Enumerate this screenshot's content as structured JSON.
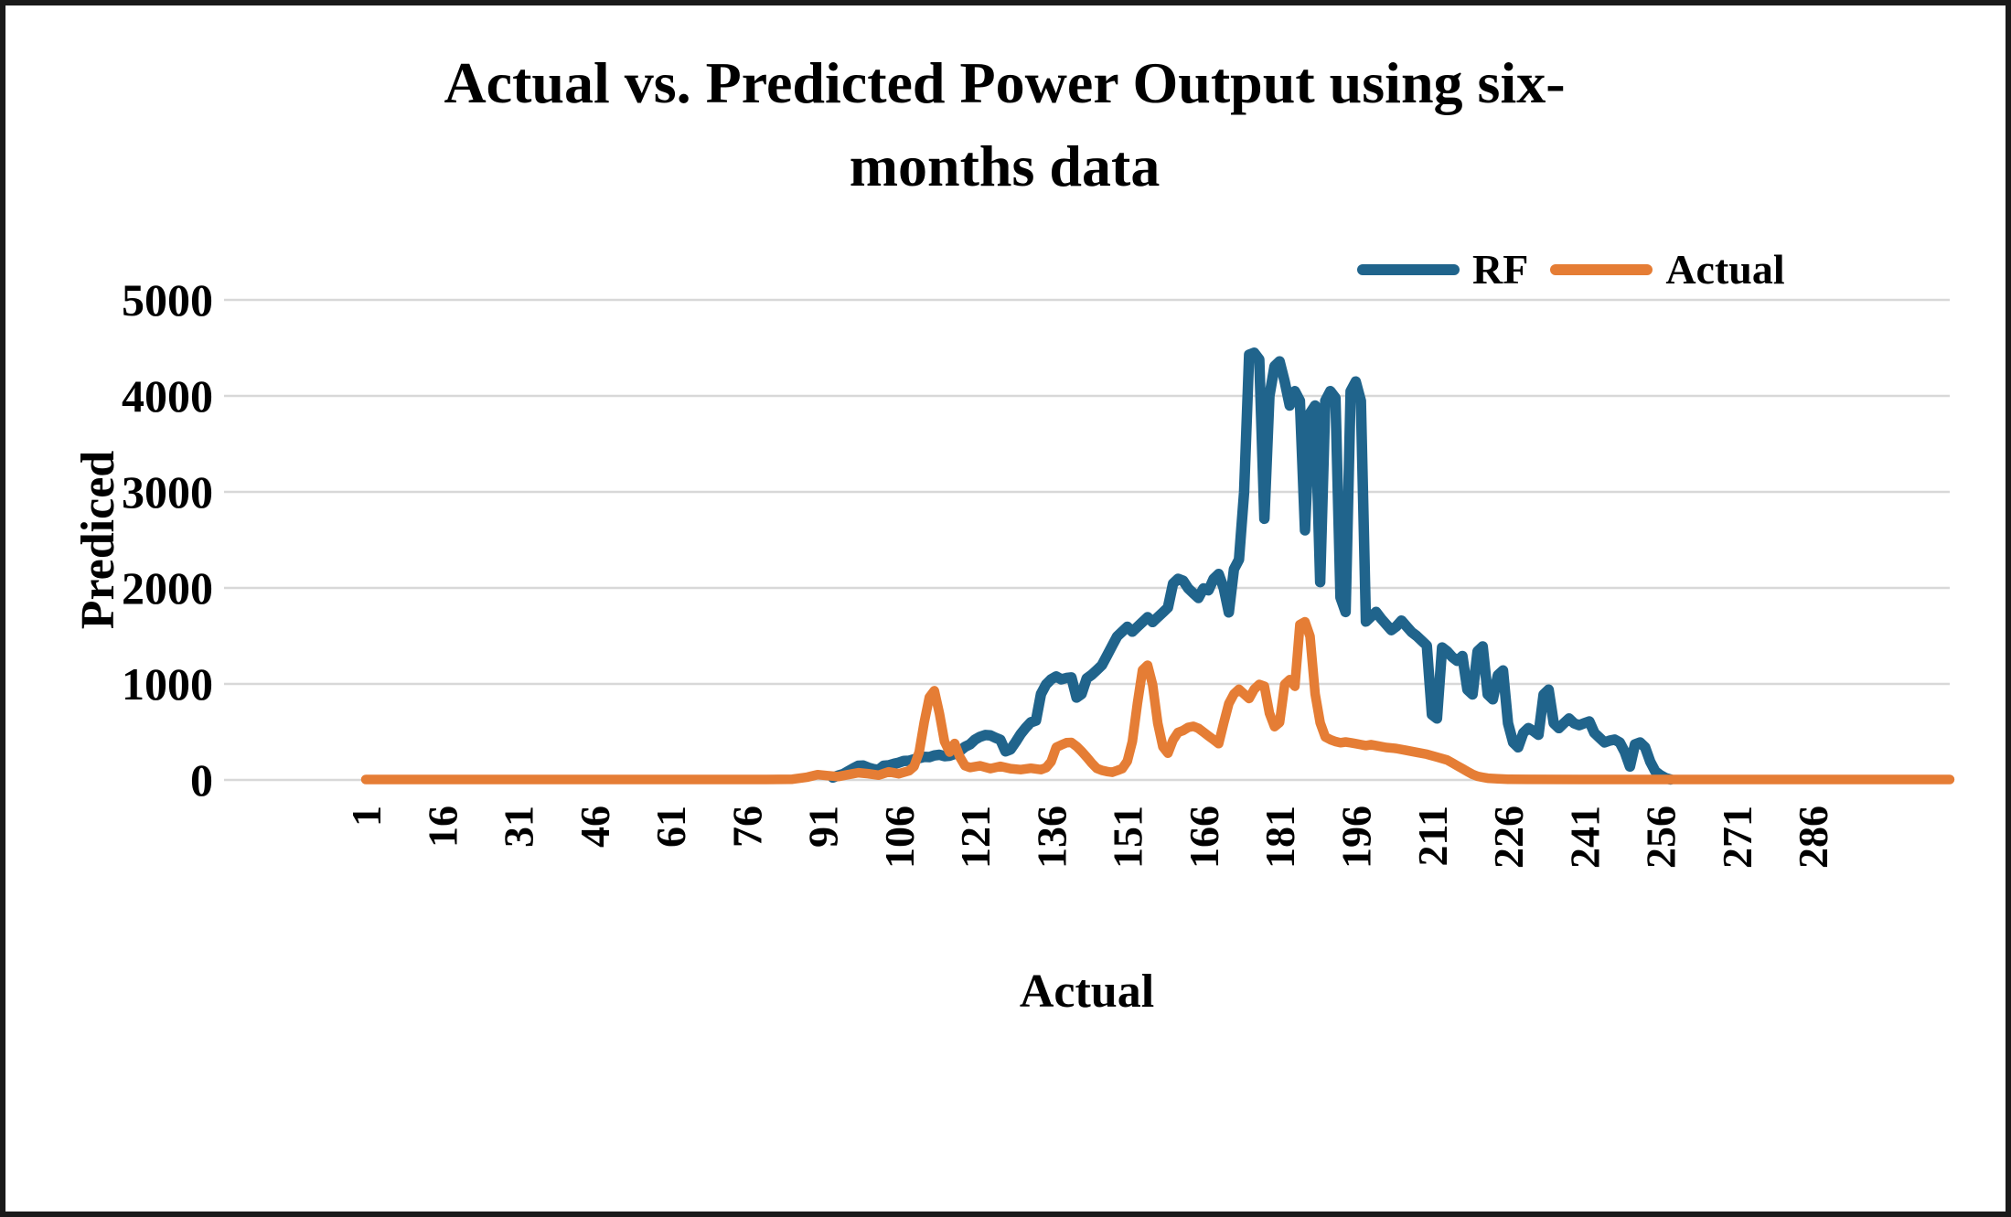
{
  "chart_data": {
    "type": "line",
    "title": "Actual vs. Predicted Power Output using six-months data",
    "title_lines": [
      "Actual vs. Predicted Power Output using six-",
      "months data"
    ],
    "xlabel": "Actual",
    "ylabel": "Prediced",
    "xlim": [
      1,
      313
    ],
    "ylim": [
      0,
      5000
    ],
    "y_ticks": [
      0,
      1000,
      2000,
      3000,
      4000,
      5000
    ],
    "x_tick_labels": [
      "1",
      "16",
      "31",
      "46",
      "61",
      "76",
      "91",
      "106",
      "121",
      "136",
      "151",
      "166",
      "181",
      "196",
      "211",
      "226",
      "241",
      "256",
      "271",
      "286"
    ],
    "grid": true,
    "legend_position": "top-right",
    "gridline_color": "#d8d8d8",
    "background_color": "#ffffff",
    "border_color": "#1a1a1a",
    "text_color": "#000000",
    "series": [
      {
        "name": "RF",
        "color": "#20648c",
        "stroke_width": 11.5,
        "data": [
          [
            93,
            25
          ],
          [
            94,
            45
          ],
          [
            95,
            60
          ],
          [
            96,
            90
          ],
          [
            97,
            120
          ],
          [
            98,
            148
          ],
          [
            99,
            150
          ],
          [
            100,
            128
          ],
          [
            101,
            112
          ],
          [
            102,
            105
          ],
          [
            103,
            148
          ],
          [
            104,
            152
          ],
          [
            105,
            168
          ],
          [
            106,
            180
          ],
          [
            107,
            198
          ],
          [
            108,
            200
          ],
          [
            109,
            215
          ],
          [
            110,
            228
          ],
          [
            111,
            240
          ],
          [
            112,
            238
          ],
          [
            113,
            255
          ],
          [
            114,
            262
          ],
          [
            115,
            248
          ],
          [
            116,
            252
          ],
          [
            117,
            270
          ],
          [
            118,
            300
          ],
          [
            119,
            345
          ],
          [
            120,
            370
          ],
          [
            121,
            420
          ],
          [
            122,
            450
          ],
          [
            123,
            468
          ],
          [
            124,
            465
          ],
          [
            125,
            440
          ],
          [
            126,
            418
          ],
          [
            127,
            298
          ],
          [
            128,
            318
          ],
          [
            129,
            395
          ],
          [
            130,
            478
          ],
          [
            131,
            545
          ],
          [
            132,
            600
          ],
          [
            133,
            618
          ],
          [
            134,
            895
          ],
          [
            135,
            995
          ],
          [
            136,
            1048
          ],
          [
            137,
            1078
          ],
          [
            138,
            1048
          ],
          [
            139,
            1062
          ],
          [
            140,
            1068
          ],
          [
            141,
            858
          ],
          [
            142,
            895
          ],
          [
            143,
            1058
          ],
          [
            144,
            1095
          ],
          [
            145,
            1145
          ],
          [
            146,
            1195
          ],
          [
            147,
            1295
          ],
          [
            148,
            1395
          ],
          [
            149,
            1495
          ],
          [
            150,
            1545
          ],
          [
            151,
            1595
          ],
          [
            152,
            1545
          ],
          [
            153,
            1595
          ],
          [
            154,
            1645
          ],
          [
            155,
            1695
          ],
          [
            156,
            1645
          ],
          [
            157,
            1695
          ],
          [
            158,
            1745
          ],
          [
            159,
            1795
          ],
          [
            160,
            2045
          ],
          [
            161,
            2095
          ],
          [
            162,
            2075
          ],
          [
            163,
            1995
          ],
          [
            164,
            1945
          ],
          [
            165,
            1895
          ],
          [
            166,
            1995
          ],
          [
            167,
            1975
          ],
          [
            168,
            2095
          ],
          [
            169,
            2145
          ],
          [
            170,
            1995
          ],
          [
            171,
            1745
          ],
          [
            172,
            2195
          ],
          [
            173,
            2295
          ],
          [
            174,
            2995
          ],
          [
            175,
            4430
          ],
          [
            176,
            4450
          ],
          [
            177,
            4380
          ],
          [
            178,
            2720
          ],
          [
            179,
            4000
          ],
          [
            180,
            4310
          ],
          [
            181,
            4360
          ],
          [
            182,
            4150
          ],
          [
            183,
            3900
          ],
          [
            184,
            4050
          ],
          [
            185,
            3950
          ],
          [
            186,
            2600
          ],
          [
            187,
            3820
          ],
          [
            188,
            3900
          ],
          [
            189,
            2060
          ],
          [
            190,
            3950
          ],
          [
            191,
            4050
          ],
          [
            192,
            3980
          ],
          [
            193,
            1900
          ],
          [
            194,
            1750
          ],
          [
            195,
            4050
          ],
          [
            196,
            4150
          ],
          [
            197,
            3950
          ],
          [
            198,
            1650
          ],
          [
            199,
            1700
          ],
          [
            200,
            1750
          ],
          [
            201,
            1680
          ],
          [
            202,
            1620
          ],
          [
            203,
            1560
          ],
          [
            204,
            1600
          ],
          [
            205,
            1660
          ],
          [
            206,
            1600
          ],
          [
            207,
            1540
          ],
          [
            208,
            1500
          ],
          [
            209,
            1450
          ],
          [
            210,
            1400
          ],
          [
            211,
            680
          ],
          [
            212,
            640
          ],
          [
            213,
            1380
          ],
          [
            214,
            1340
          ],
          [
            215,
            1280
          ],
          [
            216,
            1240
          ],
          [
            217,
            1290
          ],
          [
            218,
            940
          ],
          [
            219,
            890
          ],
          [
            220,
            1340
          ],
          [
            221,
            1390
          ],
          [
            222,
            890
          ],
          [
            223,
            840
          ],
          [
            224,
            1090
          ],
          [
            225,
            1140
          ],
          [
            226,
            590
          ],
          [
            227,
            390
          ],
          [
            228,
            340
          ],
          [
            229,
            490
          ],
          [
            230,
            540
          ],
          [
            231,
            510
          ],
          [
            232,
            470
          ],
          [
            233,
            890
          ],
          [
            234,
            940
          ],
          [
            235,
            590
          ],
          [
            236,
            540
          ],
          [
            237,
            590
          ],
          [
            238,
            640
          ],
          [
            239,
            590
          ],
          [
            240,
            570
          ],
          [
            241,
            590
          ],
          [
            242,
            610
          ],
          [
            243,
            490
          ],
          [
            244,
            440
          ],
          [
            245,
            390
          ],
          [
            246,
            410
          ],
          [
            247,
            420
          ],
          [
            248,
            390
          ],
          [
            249,
            290
          ],
          [
            250,
            140
          ],
          [
            251,
            370
          ],
          [
            252,
            390
          ],
          [
            253,
            340
          ],
          [
            254,
            190
          ],
          [
            255,
            90
          ],
          [
            256,
            50
          ],
          [
            257,
            20
          ],
          [
            258,
            5
          ]
        ]
      },
      {
        "name": "Actual",
        "color": "#e57d35",
        "stroke_width": 10.5,
        "data": [
          [
            1,
            5
          ],
          [
            10,
            5
          ],
          [
            20,
            5
          ],
          [
            30,
            5
          ],
          [
            40,
            5
          ],
          [
            50,
            5
          ],
          [
            60,
            5
          ],
          [
            70,
            5
          ],
          [
            80,
            5
          ],
          [
            85,
            8
          ],
          [
            88,
            30
          ],
          [
            90,
            55
          ],
          [
            92,
            45
          ],
          [
            94,
            35
          ],
          [
            96,
            55
          ],
          [
            98,
            75
          ],
          [
            100,
            65
          ],
          [
            102,
            50
          ],
          [
            104,
            85
          ],
          [
            106,
            65
          ],
          [
            108,
            95
          ],
          [
            109,
            140
          ],
          [
            110,
            290
          ],
          [
            111,
            600
          ],
          [
            112,
            860
          ],
          [
            113,
            930
          ],
          [
            114,
            690
          ],
          [
            115,
            400
          ],
          [
            116,
            290
          ],
          [
            117,
            380
          ],
          [
            118,
            240
          ],
          [
            119,
            150
          ],
          [
            120,
            130
          ],
          [
            122,
            148
          ],
          [
            124,
            118
          ],
          [
            126,
            142
          ],
          [
            128,
            118
          ],
          [
            130,
            108
          ],
          [
            132,
            122
          ],
          [
            134,
            108
          ],
          [
            135,
            128
          ],
          [
            136,
            190
          ],
          [
            137,
            340
          ],
          [
            138,
            365
          ],
          [
            139,
            388
          ],
          [
            140,
            390
          ],
          [
            141,
            350
          ],
          [
            142,
            298
          ],
          [
            143,
            238
          ],
          [
            144,
            175
          ],
          [
            145,
            120
          ],
          [
            146,
            100
          ],
          [
            147,
            88
          ],
          [
            148,
            80
          ],
          [
            149,
            98
          ],
          [
            150,
            118
          ],
          [
            151,
            195
          ],
          [
            152,
            400
          ],
          [
            153,
            800
          ],
          [
            154,
            1145
          ],
          [
            155,
            1195
          ],
          [
            156,
            990
          ],
          [
            157,
            590
          ],
          [
            158,
            345
          ],
          [
            159,
            278
          ],
          [
            160,
            415
          ],
          [
            161,
            495
          ],
          [
            162,
            515
          ],
          [
            163,
            548
          ],
          [
            164,
            558
          ],
          [
            165,
            538
          ],
          [
            166,
            498
          ],
          [
            167,
            458
          ],
          [
            168,
            418
          ],
          [
            169,
            378
          ],
          [
            170,
            595
          ],
          [
            171,
            795
          ],
          [
            172,
            895
          ],
          [
            173,
            945
          ],
          [
            174,
            895
          ],
          [
            175,
            848
          ],
          [
            176,
            945
          ],
          [
            177,
            995
          ],
          [
            178,
            975
          ],
          [
            179,
            695
          ],
          [
            180,
            555
          ],
          [
            181,
            598
          ],
          [
            182,
            995
          ],
          [
            183,
            1045
          ],
          [
            184,
            975
          ],
          [
            185,
            1618
          ],
          [
            186,
            1648
          ],
          [
            187,
            1495
          ],
          [
            188,
            895
          ],
          [
            189,
            595
          ],
          [
            190,
            448
          ],
          [
            191,
            420
          ],
          [
            192,
            400
          ],
          [
            193,
            388
          ],
          [
            194,
            395
          ],
          [
            195,
            388
          ],
          [
            196,
            378
          ],
          [
            197,
            368
          ],
          [
            198,
            358
          ],
          [
            199,
            368
          ],
          [
            200,
            358
          ],
          [
            202,
            338
          ],
          [
            204,
            328
          ],
          [
            206,
            308
          ],
          [
            208,
            288
          ],
          [
            210,
            268
          ],
          [
            212,
            238
          ],
          [
            214,
            208
          ],
          [
            215,
            178
          ],
          [
            216,
            148
          ],
          [
            217,
            118
          ],
          [
            218,
            88
          ],
          [
            219,
            58
          ],
          [
            220,
            38
          ],
          [
            221,
            28
          ],
          [
            222,
            18
          ],
          [
            224,
            12
          ],
          [
            226,
            8
          ],
          [
            230,
            6
          ],
          [
            240,
            5
          ],
          [
            250,
            5
          ],
          [
            260,
            5
          ],
          [
            270,
            5
          ],
          [
            280,
            5
          ],
          [
            290,
            5
          ],
          [
            300,
            5
          ],
          [
            313,
            5
          ]
        ]
      }
    ]
  }
}
